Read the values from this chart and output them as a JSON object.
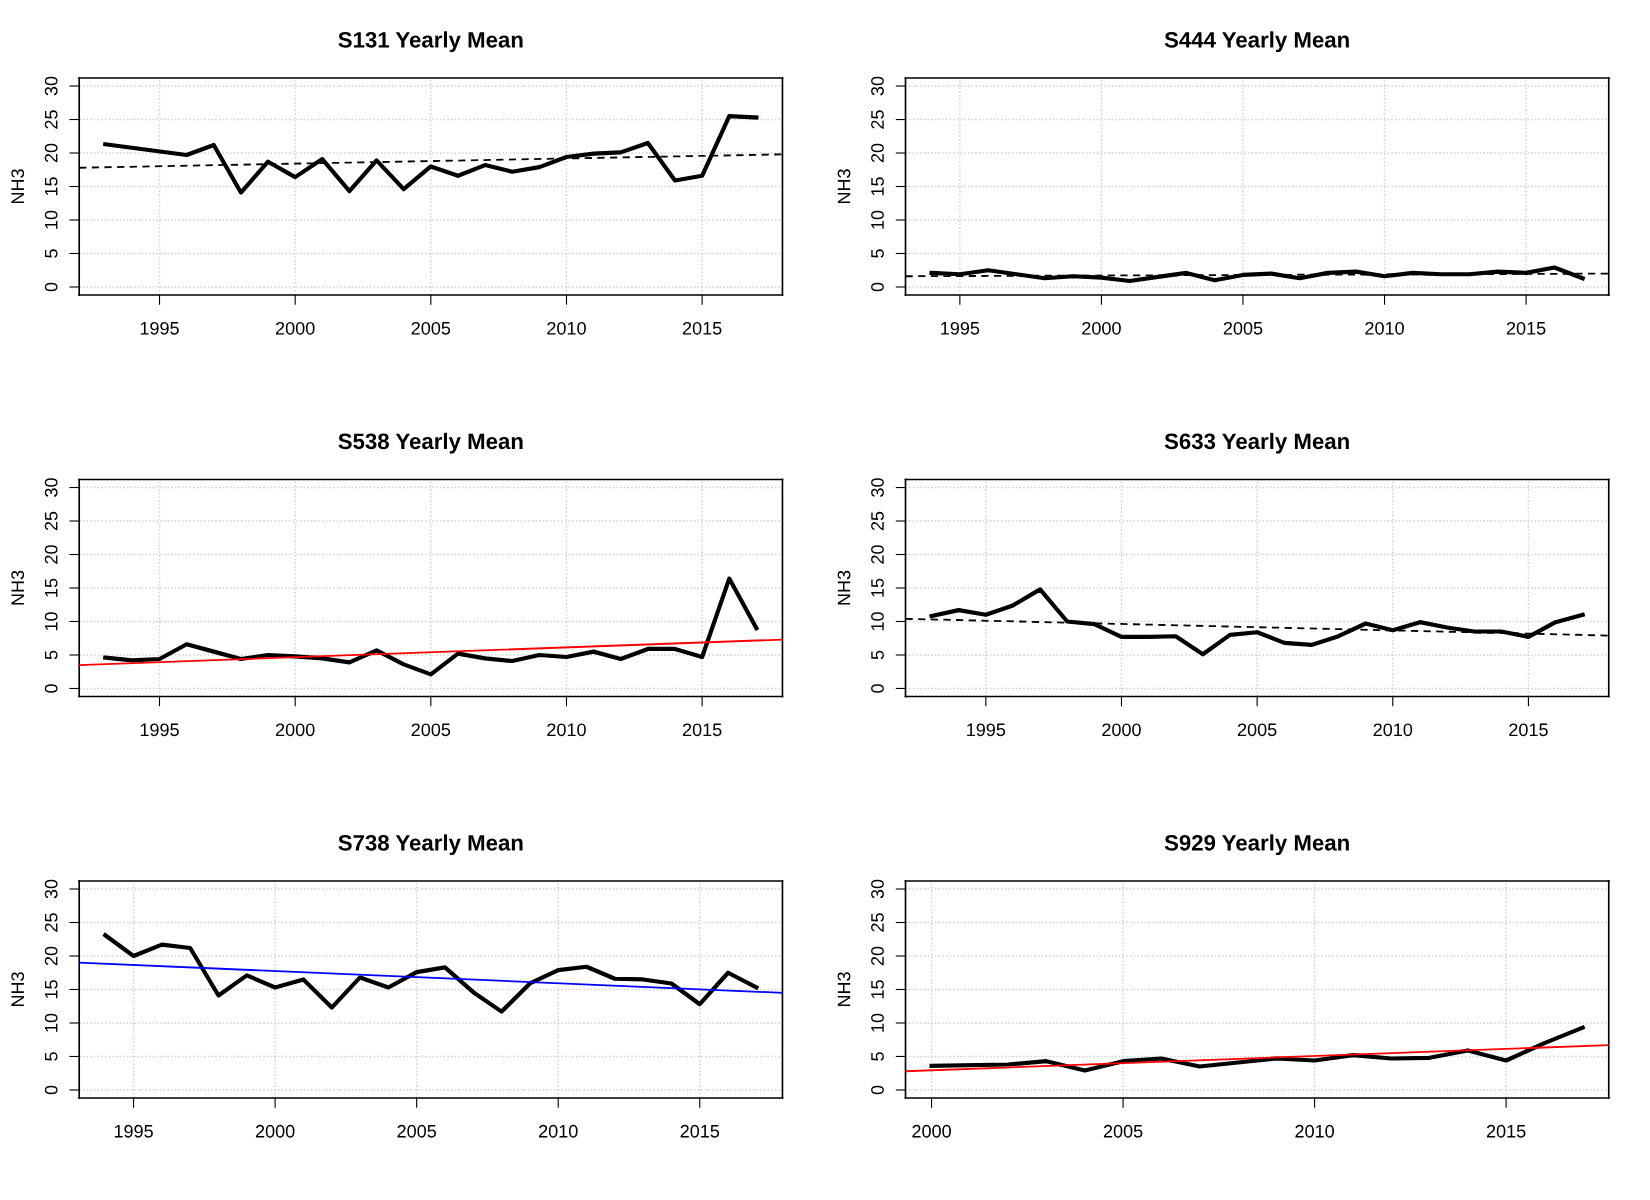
{
  "chart_data": [
    {
      "type": "line",
      "title": "S131 Yearly Mean",
      "ylabel": "NH3",
      "xlim": [
        1992.04,
        2017.96
      ],
      "xticks": [
        1995,
        2000,
        2005,
        2010,
        2015
      ],
      "ylim": [
        -1.2,
        31.2
      ],
      "yticks": [
        0,
        5,
        10,
        15,
        20,
        25,
        30
      ],
      "grid": true,
      "marker": "none",
      "series": [
        {
          "color": "#000000",
          "line_style": "solid",
          "x": [
            1993,
            1996,
            1997,
            1998,
            1999,
            2000,
            2001,
            2002,
            2003,
            2004,
            2005,
            2006,
            2007,
            2008,
            2009,
            2010,
            2011,
            2012,
            2013,
            2014,
            2015,
            2016,
            2017
          ],
          "values": [
            21.3,
            19.7,
            21.2,
            14.1,
            18.7,
            16.4,
            19.1,
            14.3,
            18.9,
            14.6,
            18.0,
            16.6,
            18.2,
            17.2,
            17.9,
            19.4,
            19.9,
            20.1,
            21.5,
            15.9,
            16.6,
            25.5,
            25.3
          ]
        },
        {
          "type": "line",
          "color": "#000000",
          "line_style": "dashed",
          "x": [
            1992.04,
            2017.96
          ],
          "values": [
            17.8,
            19.8
          ]
        }
      ]
    },
    {
      "type": "line",
      "title": "S444 Yearly Mean",
      "ylabel": "NH3",
      "xlim": [
        1993.08,
        2017.92
      ],
      "xticks": [
        1995,
        2000,
        2005,
        2010,
        2015
      ],
      "ylim": [
        -1.2,
        31.2
      ],
      "yticks": [
        0,
        5,
        10,
        15,
        20,
        25,
        30
      ],
      "grid": true,
      "marker": "none",
      "series": [
        {
          "color": "#000000",
          "line_style": "solid",
          "x": [
            1994,
            1995,
            1996,
            1997,
            1998,
            1999,
            2000,
            2001,
            2002,
            2003,
            2004,
            2005,
            2006,
            2007,
            2008,
            2009,
            2010,
            2011,
            2012,
            2013,
            2014,
            2015,
            2016,
            2017
          ],
          "values": [
            2.1,
            1.9,
            2.5,
            1.9,
            1.3,
            1.6,
            1.4,
            0.9,
            1.5,
            2.1,
            1.0,
            1.8,
            2.0,
            1.3,
            2.1,
            2.3,
            1.6,
            2.1,
            1.9,
            1.9,
            2.3,
            2.1,
            2.9,
            1.3
          ]
        },
        {
          "type": "line",
          "color": "#000000",
          "line_style": "dashed",
          "x": [
            1993.08,
            2017.92
          ],
          "values": [
            1.6,
            2.0
          ]
        }
      ]
    },
    {
      "type": "line",
      "title": "S538 Yearly Mean",
      "ylabel": "NH3",
      "xlim": [
        1992.04,
        2017.96
      ],
      "xticks": [
        1995,
        2000,
        2005,
        2010,
        2015
      ],
      "ylim": [
        -1.2,
        31.2
      ],
      "yticks": [
        0,
        5,
        10,
        15,
        20,
        25,
        30
      ],
      "grid": true,
      "marker": "none",
      "series": [
        {
          "color": "#000000",
          "line_style": "solid",
          "x": [
            1993,
            1994,
            1995,
            1996,
            1997,
            1998,
            1999,
            2000,
            2001,
            2002,
            2003,
            2004,
            2005,
            2006,
            2007,
            2008,
            2009,
            2010,
            2011,
            2012,
            2013,
            2014,
            2015,
            2016,
            2017
          ],
          "values": [
            4.6,
            4.2,
            4.4,
            6.6,
            5.5,
            4.4,
            5.0,
            4.8,
            4.5,
            3.9,
            5.7,
            3.6,
            2.1,
            5.2,
            4.5,
            4.1,
            5.0,
            4.7,
            5.5,
            4.4,
            5.9,
            5.9,
            4.7,
            16.4,
            9.0
          ]
        },
        {
          "type": "line",
          "color": "#ff0000",
          "line_style": "solid",
          "x": [
            1992.04,
            2017.96
          ],
          "values": [
            3.5,
            7.3
          ]
        }
      ]
    },
    {
      "type": "line",
      "title": "S633 Yearly Mean",
      "ylabel": "NH3",
      "xlim": [
        1992.04,
        2017.96
      ],
      "xticks": [
        1995,
        2000,
        2005,
        2010,
        2015
      ],
      "ylim": [
        -1.2,
        31.2
      ],
      "yticks": [
        0,
        5,
        10,
        15,
        20,
        25,
        30
      ],
      "grid": true,
      "marker": "none",
      "series": [
        {
          "color": "#000000",
          "line_style": "solid",
          "x": [
            1993,
            1994,
            1995,
            1996,
            1997,
            1998,
            1999,
            2000,
            2001,
            2002,
            2003,
            2004,
            2005,
            2006,
            2007,
            2008,
            2009,
            2010,
            2011,
            2012,
            2013,
            2014,
            2015,
            2016,
            2017
          ],
          "values": [
            10.8,
            11.7,
            11.0,
            12.4,
            14.8,
            10.0,
            9.6,
            7.7,
            7.7,
            7.8,
            5.1,
            8.0,
            8.4,
            6.8,
            6.5,
            7.8,
            9.7,
            8.7,
            9.9,
            9.1,
            8.5,
            8.5,
            7.7,
            9.9,
            11.0
          ]
        },
        {
          "type": "line",
          "color": "#000000",
          "line_style": "dashed",
          "x": [
            1992.04,
            2017.96
          ],
          "values": [
            10.4,
            7.9
          ]
        }
      ]
    },
    {
      "type": "line",
      "title": "S738 Yearly Mean",
      "ylabel": "NH3",
      "xlim": [
        1993.08,
        2017.92
      ],
      "xticks": [
        1995,
        2000,
        2005,
        2010,
        2015
      ],
      "ylim": [
        -1.2,
        31.2
      ],
      "yticks": [
        0,
        5,
        10,
        15,
        20,
        25,
        30
      ],
      "grid": true,
      "marker": "none",
      "series": [
        {
          "color": "#000000",
          "line_style": "solid",
          "x": [
            1994,
            1995,
            1996,
            1997,
            1998,
            1999,
            2000,
            2001,
            2002,
            2003,
            2004,
            2005,
            2006,
            2007,
            2008,
            2009,
            2010,
            2011,
            2012,
            2013,
            2014,
            2015,
            2016,
            2017
          ],
          "values": [
            23.1,
            20.0,
            21.7,
            21.2,
            14.1,
            17.1,
            15.3,
            16.5,
            12.3,
            16.8,
            15.3,
            17.6,
            18.3,
            14.6,
            11.7,
            15.9,
            17.9,
            18.4,
            16.6,
            16.5,
            15.9,
            12.8,
            17.5,
            15.3
          ]
        },
        {
          "type": "line",
          "color": "#0000ff",
          "line_style": "solid",
          "x": [
            1993.08,
            2017.92
          ],
          "values": [
            19.0,
            14.5
          ]
        }
      ]
    },
    {
      "type": "line",
      "title": "S929 Yearly Mean",
      "ylabel": "NH3",
      "xlim": [
        1999.32,
        2017.68
      ],
      "xticks": [
        2000,
        2005,
        2010,
        2015
      ],
      "ylim": [
        -1.2,
        31.2
      ],
      "yticks": [
        0,
        5,
        10,
        15,
        20,
        25,
        30
      ],
      "grid": true,
      "marker": "none",
      "series": [
        {
          "color": "#000000",
          "line_style": "solid",
          "x": [
            2000,
            2002,
            2003,
            2004,
            2005,
            2006,
            2007,
            2008,
            2009,
            2010,
            2011,
            2012,
            2013,
            2014,
            2015,
            2016,
            2017
          ],
          "values": [
            3.6,
            3.8,
            4.3,
            2.9,
            4.3,
            4.7,
            3.5,
            4.1,
            4.7,
            4.4,
            5.2,
            4.7,
            4.8,
            5.9,
            4.4,
            7.0,
            9.3
          ]
        },
        {
          "type": "line",
          "color": "#ff0000",
          "line_style": "solid",
          "x": [
            1999.32,
            2017.68
          ],
          "values": [
            2.8,
            6.7
          ]
        }
      ]
    }
  ]
}
